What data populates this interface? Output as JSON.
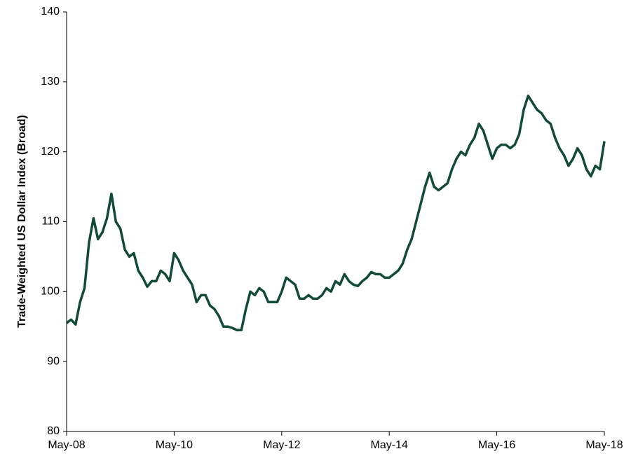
{
  "chart_data": {
    "type": "line",
    "y_label": "Trade-Weighted US Dollar Index (Broad)",
    "color": "#124a3a",
    "xlim": [
      "2008-05",
      "2018-05"
    ],
    "xticks": [
      {
        "value": "2008-05",
        "label": "May-08"
      },
      {
        "value": "2010-05",
        "label": "May-10"
      },
      {
        "value": "2012-05",
        "label": "May-12"
      },
      {
        "value": "2014-05",
        "label": "May-14"
      },
      {
        "value": "2016-05",
        "label": "May-16"
      },
      {
        "value": "2018-05",
        "label": "May-18"
      }
    ],
    "ylim": [
      80,
      140
    ],
    "yticks": [
      80,
      90,
      100,
      110,
      120,
      130,
      140
    ],
    "grid": false,
    "x": [
      "2008-05",
      "2008-06",
      "2008-07",
      "2008-08",
      "2008-09",
      "2008-10",
      "2008-11",
      "2008-12",
      "2009-01",
      "2009-02",
      "2009-03",
      "2009-04",
      "2009-05",
      "2009-06",
      "2009-07",
      "2009-08",
      "2009-09",
      "2009-10",
      "2009-11",
      "2009-12",
      "2010-01",
      "2010-02",
      "2010-03",
      "2010-04",
      "2010-05",
      "2010-06",
      "2010-07",
      "2010-08",
      "2010-09",
      "2010-10",
      "2010-11",
      "2010-12",
      "2011-01",
      "2011-02",
      "2011-03",
      "2011-04",
      "2011-05",
      "2011-06",
      "2011-07",
      "2011-08",
      "2011-09",
      "2011-10",
      "2011-11",
      "2011-12",
      "2012-01",
      "2012-02",
      "2012-03",
      "2012-04",
      "2012-05",
      "2012-06",
      "2012-07",
      "2012-08",
      "2012-09",
      "2012-10",
      "2012-11",
      "2012-12",
      "2013-01",
      "2013-02",
      "2013-03",
      "2013-04",
      "2013-05",
      "2013-06",
      "2013-07",
      "2013-08",
      "2013-09",
      "2013-10",
      "2013-11",
      "2013-12",
      "2014-01",
      "2014-02",
      "2014-03",
      "2014-04",
      "2014-05",
      "2014-06",
      "2014-07",
      "2014-08",
      "2014-09",
      "2014-10",
      "2014-11",
      "2014-12",
      "2015-01",
      "2015-02",
      "2015-03",
      "2015-04",
      "2015-05",
      "2015-06",
      "2015-07",
      "2015-08",
      "2015-09",
      "2015-10",
      "2015-11",
      "2015-12",
      "2016-01",
      "2016-02",
      "2016-03",
      "2016-04",
      "2016-05",
      "2016-06",
      "2016-07",
      "2016-08",
      "2016-09",
      "2016-10",
      "2016-11",
      "2016-12",
      "2017-01",
      "2017-02",
      "2017-03",
      "2017-04",
      "2017-05",
      "2017-06",
      "2017-07",
      "2017-08",
      "2017-09",
      "2017-10",
      "2017-11",
      "2017-12",
      "2018-01",
      "2018-02",
      "2018-03",
      "2018-04",
      "2018-05"
    ],
    "values": [
      95.5,
      96,
      95.3,
      98.5,
      100.5,
      107,
      110.5,
      107.5,
      108.5,
      110.5,
      114,
      110,
      109,
      106,
      105,
      105.5,
      103,
      102,
      100.7,
      101.5,
      101.5,
      103,
      102.5,
      101.5,
      105.5,
      104.5,
      103,
      102,
      101,
      98.5,
      99.5,
      99.5,
      98,
      97.5,
      96.5,
      95,
      95,
      94.8,
      94.5,
      94.5,
      97.5,
      100,
      99.5,
      100.5,
      100,
      98.5,
      98.5,
      98.5,
      100,
      102,
      101.5,
      101,
      99,
      99,
      99.5,
      99,
      99,
      99.5,
      100.5,
      100,
      101.5,
      101,
      102.5,
      101.5,
      101,
      100.8,
      101.5,
      102,
      102.8,
      102.5,
      102.5,
      102,
      102,
      102.5,
      103,
      104,
      106,
      107.5,
      110,
      112.5,
      115,
      117,
      115,
      114.5,
      115,
      115.5,
      117.5,
      119,
      120,
      119.5,
      121,
      122,
      124,
      123,
      121,
      119,
      120.5,
      121,
      121,
      120.5,
      121,
      122.5,
      126,
      128,
      127,
      126,
      125.5,
      124.5,
      124,
      122,
      120.5,
      119.5,
      118,
      119,
      120.5,
      119.5,
      117.5,
      116.5,
      118,
      117.5,
      121.5
    ]
  }
}
